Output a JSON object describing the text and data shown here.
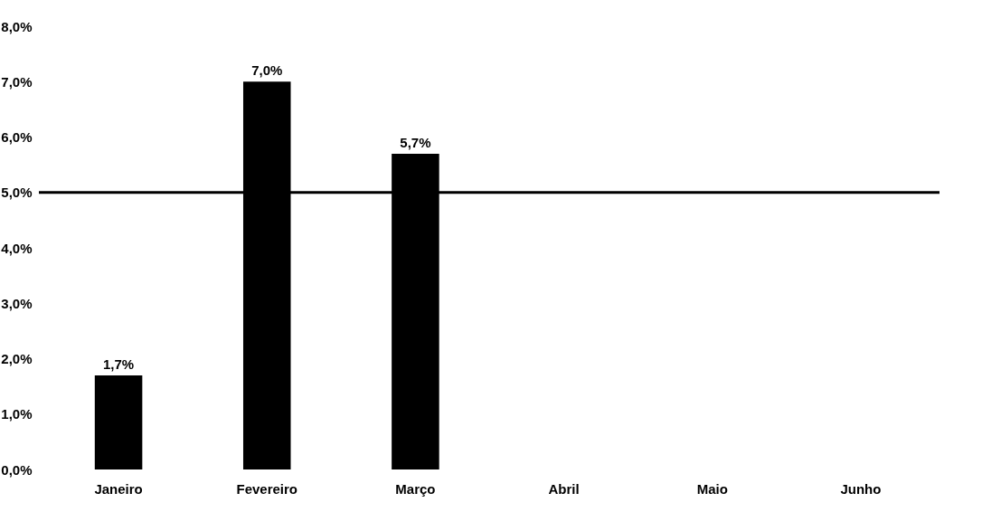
{
  "chart_data": {
    "type": "bar",
    "categories": [
      "Janeiro",
      "Fevereiro",
      "Março",
      "Abril",
      "Maio",
      "Junho"
    ],
    "values": [
      1.7,
      7.0,
      5.7,
      null,
      null,
      null
    ],
    "color": "#000000",
    "value_labels": [
      "1,7%",
      "7,0%",
      "5,7%",
      null,
      null,
      null
    ],
    "ylim": [
      0,
      8
    ],
    "yticks": [
      {
        "value": 0,
        "label": "0,0%"
      },
      {
        "value": 1,
        "label": "1,0%"
      },
      {
        "value": 2,
        "label": "2,0%"
      },
      {
        "value": 3,
        "label": "3,0%"
      },
      {
        "value": 4,
        "label": "4,0%"
      },
      {
        "value": 5,
        "label": "5,0%"
      },
      {
        "value": 6,
        "label": "6,0%"
      },
      {
        "value": 7,
        "label": "7,0%"
      },
      {
        "value": 8,
        "label": "8,0%"
      }
    ],
    "ref_lines": [
      {
        "axis": "y",
        "value": 5,
        "color": "#000000"
      }
    ],
    "grid": false
  }
}
